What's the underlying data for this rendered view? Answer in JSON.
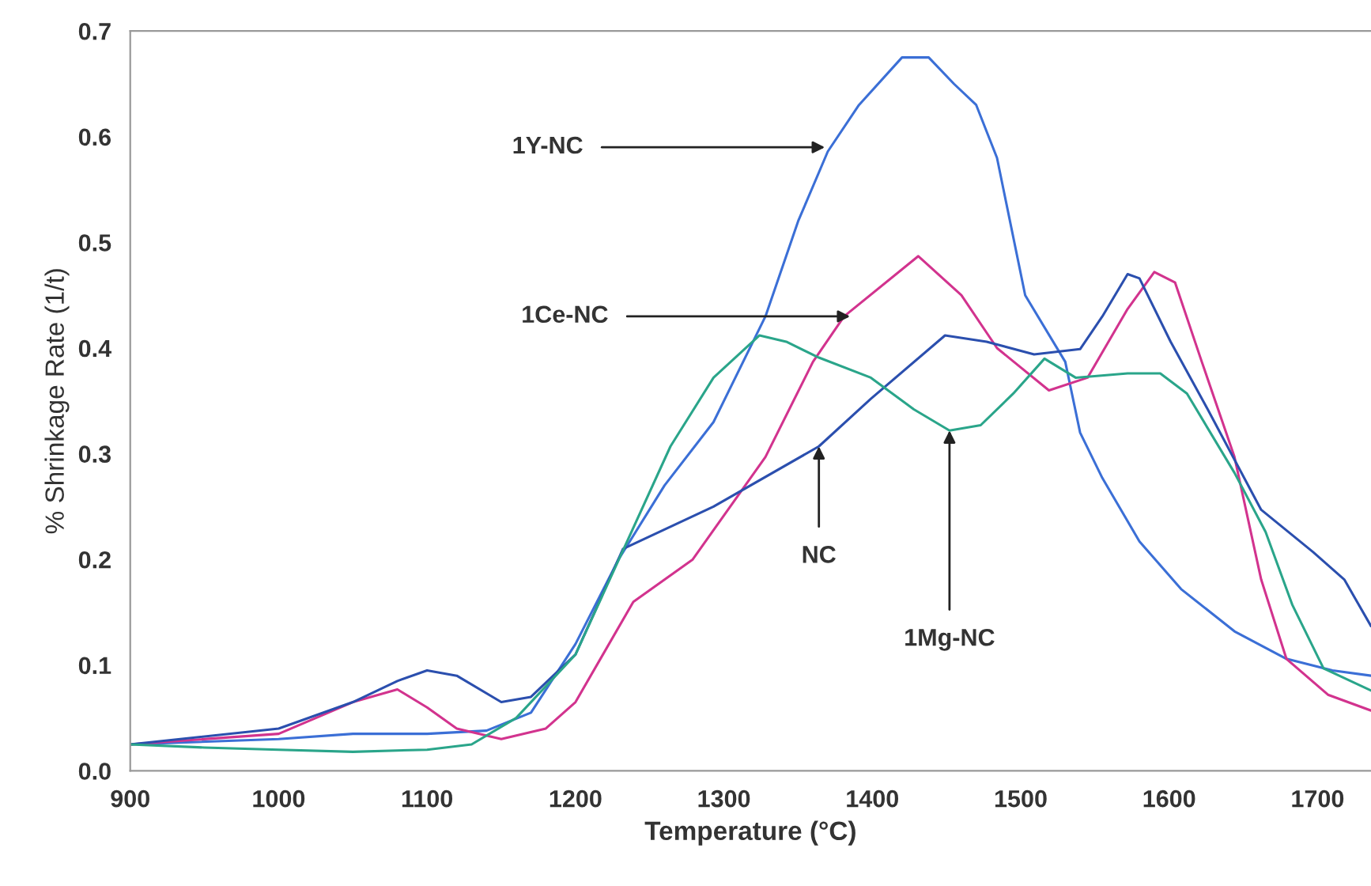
{
  "chart_data": {
    "type": "line",
    "xlabel": "Temperature (°C)",
    "ylabel": "% Shrinkage Rate (1/t)",
    "xlim": [
      900,
      1736
    ],
    "xticks": [
      900,
      1000,
      1100,
      1200,
      1300,
      1400,
      1500,
      1600,
      1700
    ],
    "ylim": [
      0,
      0.7
    ],
    "yticks": [
      {
        "value": 0,
        "label": "0.0"
      },
      0.1,
      0.2,
      0.3,
      0.4,
      0.5,
      0.6,
      0.7
    ],
    "grid": false,
    "legend": false,
    "marker": "none",
    "line_style": "solid",
    "series": [
      {
        "color": "#3b6fd6",
        "x": [
          900,
          1000,
          1050,
          1100,
          1140,
          1170,
          1200,
          1229,
          1260,
          1293,
          1328,
          1350,
          1370,
          1391,
          1420,
          1438,
          1455,
          1470,
          1484,
          1503,
          1530,
          1540,
          1555,
          1580,
          1608,
          1644,
          1679,
          1710,
          1736
        ],
        "values": [
          0.025,
          0.03,
          0.035,
          0.035,
          0.038,
          0.055,
          0.12,
          0.2,
          0.27,
          0.33,
          0.43,
          0.52,
          0.586,
          0.63,
          0.675,
          0.675,
          0.65,
          0.63,
          0.58,
          0.45,
          0.387,
          0.32,
          0.277,
          0.217,
          0.172,
          0.132,
          0.106,
          0.095,
          0.09
        ]
      },
      {
        "color": "#d2338e",
        "x": [
          900,
          1000,
          1050,
          1080,
          1100,
          1120,
          1150,
          1180,
          1200,
          1239,
          1279,
          1328,
          1360,
          1381,
          1431,
          1460,
          1484,
          1519,
          1545,
          1572,
          1590,
          1604,
          1622,
          1644,
          1662,
          1679,
          1707,
          1736
        ],
        "values": [
          0.025,
          0.035,
          0.065,
          0.077,
          0.06,
          0.04,
          0.03,
          0.04,
          0.065,
          0.16,
          0.2,
          0.297,
          0.387,
          0.43,
          0.487,
          0.45,
          0.4,
          0.36,
          0.372,
          0.437,
          0.472,
          0.462,
          0.387,
          0.297,
          0.181,
          0.106,
          0.072,
          0.057
        ]
      },
      {
        "color": "#2b4fae",
        "x": [
          900,
          1000,
          1050,
          1080,
          1100,
          1120,
          1150,
          1170,
          1200,
          1232,
          1293,
          1364,
          1399,
          1449,
          1477,
          1509,
          1540,
          1555,
          1572,
          1580,
          1601,
          1626,
          1662,
          1697,
          1718,
          1736
        ],
        "values": [
          0.025,
          0.04,
          0.065,
          0.085,
          0.095,
          0.09,
          0.065,
          0.07,
          0.11,
          0.21,
          0.25,
          0.307,
          0.352,
          0.412,
          0.406,
          0.394,
          0.399,
          0.43,
          0.47,
          0.466,
          0.406,
          0.342,
          0.247,
          0.207,
          0.181,
          0.137
        ]
      },
      {
        "color": "#2aa58a",
        "x": [
          900,
          950,
          1000,
          1050,
          1100,
          1130,
          1160,
          1200,
          1264,
          1293,
          1324,
          1342,
          1364,
          1399,
          1428,
          1452,
          1473,
          1495,
          1516,
          1537,
          1572,
          1594,
          1612,
          1644,
          1665,
          1683,
          1704,
          1736
        ],
        "values": [
          0.025,
          0.022,
          0.02,
          0.018,
          0.02,
          0.025,
          0.05,
          0.11,
          0.307,
          0.372,
          0.412,
          0.406,
          0.391,
          0.372,
          0.342,
          0.322,
          0.327,
          0.357,
          0.39,
          0.372,
          0.376,
          0.376,
          0.357,
          0.282,
          0.226,
          0.157,
          0.097,
          0.076
        ]
      }
    ],
    "annotations": [
      {
        "text": "1Y-NC",
        "x": 1368,
        "y": 0.59
      },
      {
        "text": "1Ce-NC",
        "x": 1385,
        "y": 0.43
      },
      {
        "text": "NC",
        "x": 1364,
        "y": 0.307
      },
      {
        "text": "1Mg-NC",
        "x": 1452,
        "y": 0.322
      }
    ]
  }
}
